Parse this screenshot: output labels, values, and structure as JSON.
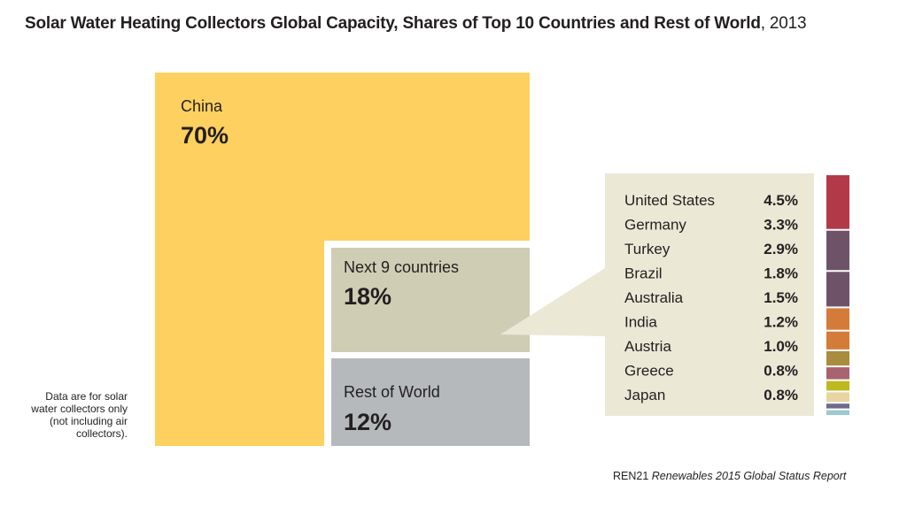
{
  "title": {
    "bold": "Solar Water Heating Collectors Global Capacity, Shares of Top 10 Countries and Rest of World",
    "year": ", 2013"
  },
  "note": "Data are for solar water collectors only (not including air collectors).",
  "source": {
    "org": "REN21",
    "report": "Renewables 2015 Global Status Report"
  },
  "chart_data": {
    "type": "treemap",
    "title": "Solar Water Heating Collectors Global Capacity, Shares of Top 10 Countries and Rest of World, 2013",
    "unit": "%",
    "groups": [
      {
        "label": "China",
        "value_label": "70%",
        "value": 70,
        "color": "#fdd05f"
      },
      {
        "label": "Next 9 countries",
        "value_label": "18%",
        "value": 18,
        "color": "#cfceb5"
      },
      {
        "label": "Rest of World",
        "value_label": "12%",
        "value": 12,
        "color": "#b6b9bb"
      }
    ],
    "breakdown": {
      "of": "Next 9 countries",
      "items": [
        {
          "country": "United States",
          "value_label": "4.5%",
          "value": 4.5,
          "color": "#b23a48"
        },
        {
          "country": "Germany",
          "value_label": "3.3%",
          "value": 3.3,
          "color": "#6e5368"
        },
        {
          "country": "Turkey",
          "value_label": "2.9%",
          "value": 2.9,
          "color": "#6e5368"
        },
        {
          "country": "Brazil",
          "value_label": "1.8%",
          "value": 1.8,
          "color": "#d47b3a"
        },
        {
          "country": "Australia",
          "value_label": "1.5%",
          "value": 1.5,
          "color": "#d47b3a"
        },
        {
          "country": "India",
          "value_label": "1.2%",
          "value": 1.2,
          "color": "#a98c3e"
        },
        {
          "country": "Austria",
          "value_label": "1.0%",
          "value": 1.0,
          "color": "#a8636f"
        },
        {
          "country": "Greece",
          "value_label": "0.8%",
          "value": 0.8,
          "color": "#bdb91f"
        },
        {
          "country": "Japan",
          "value_label": "0.8%",
          "value": 0.8,
          "color": "#ead4a1"
        }
      ],
      "extra_strip_colors": [
        "#6f6a88",
        "#9bc9cf"
      ]
    }
  }
}
